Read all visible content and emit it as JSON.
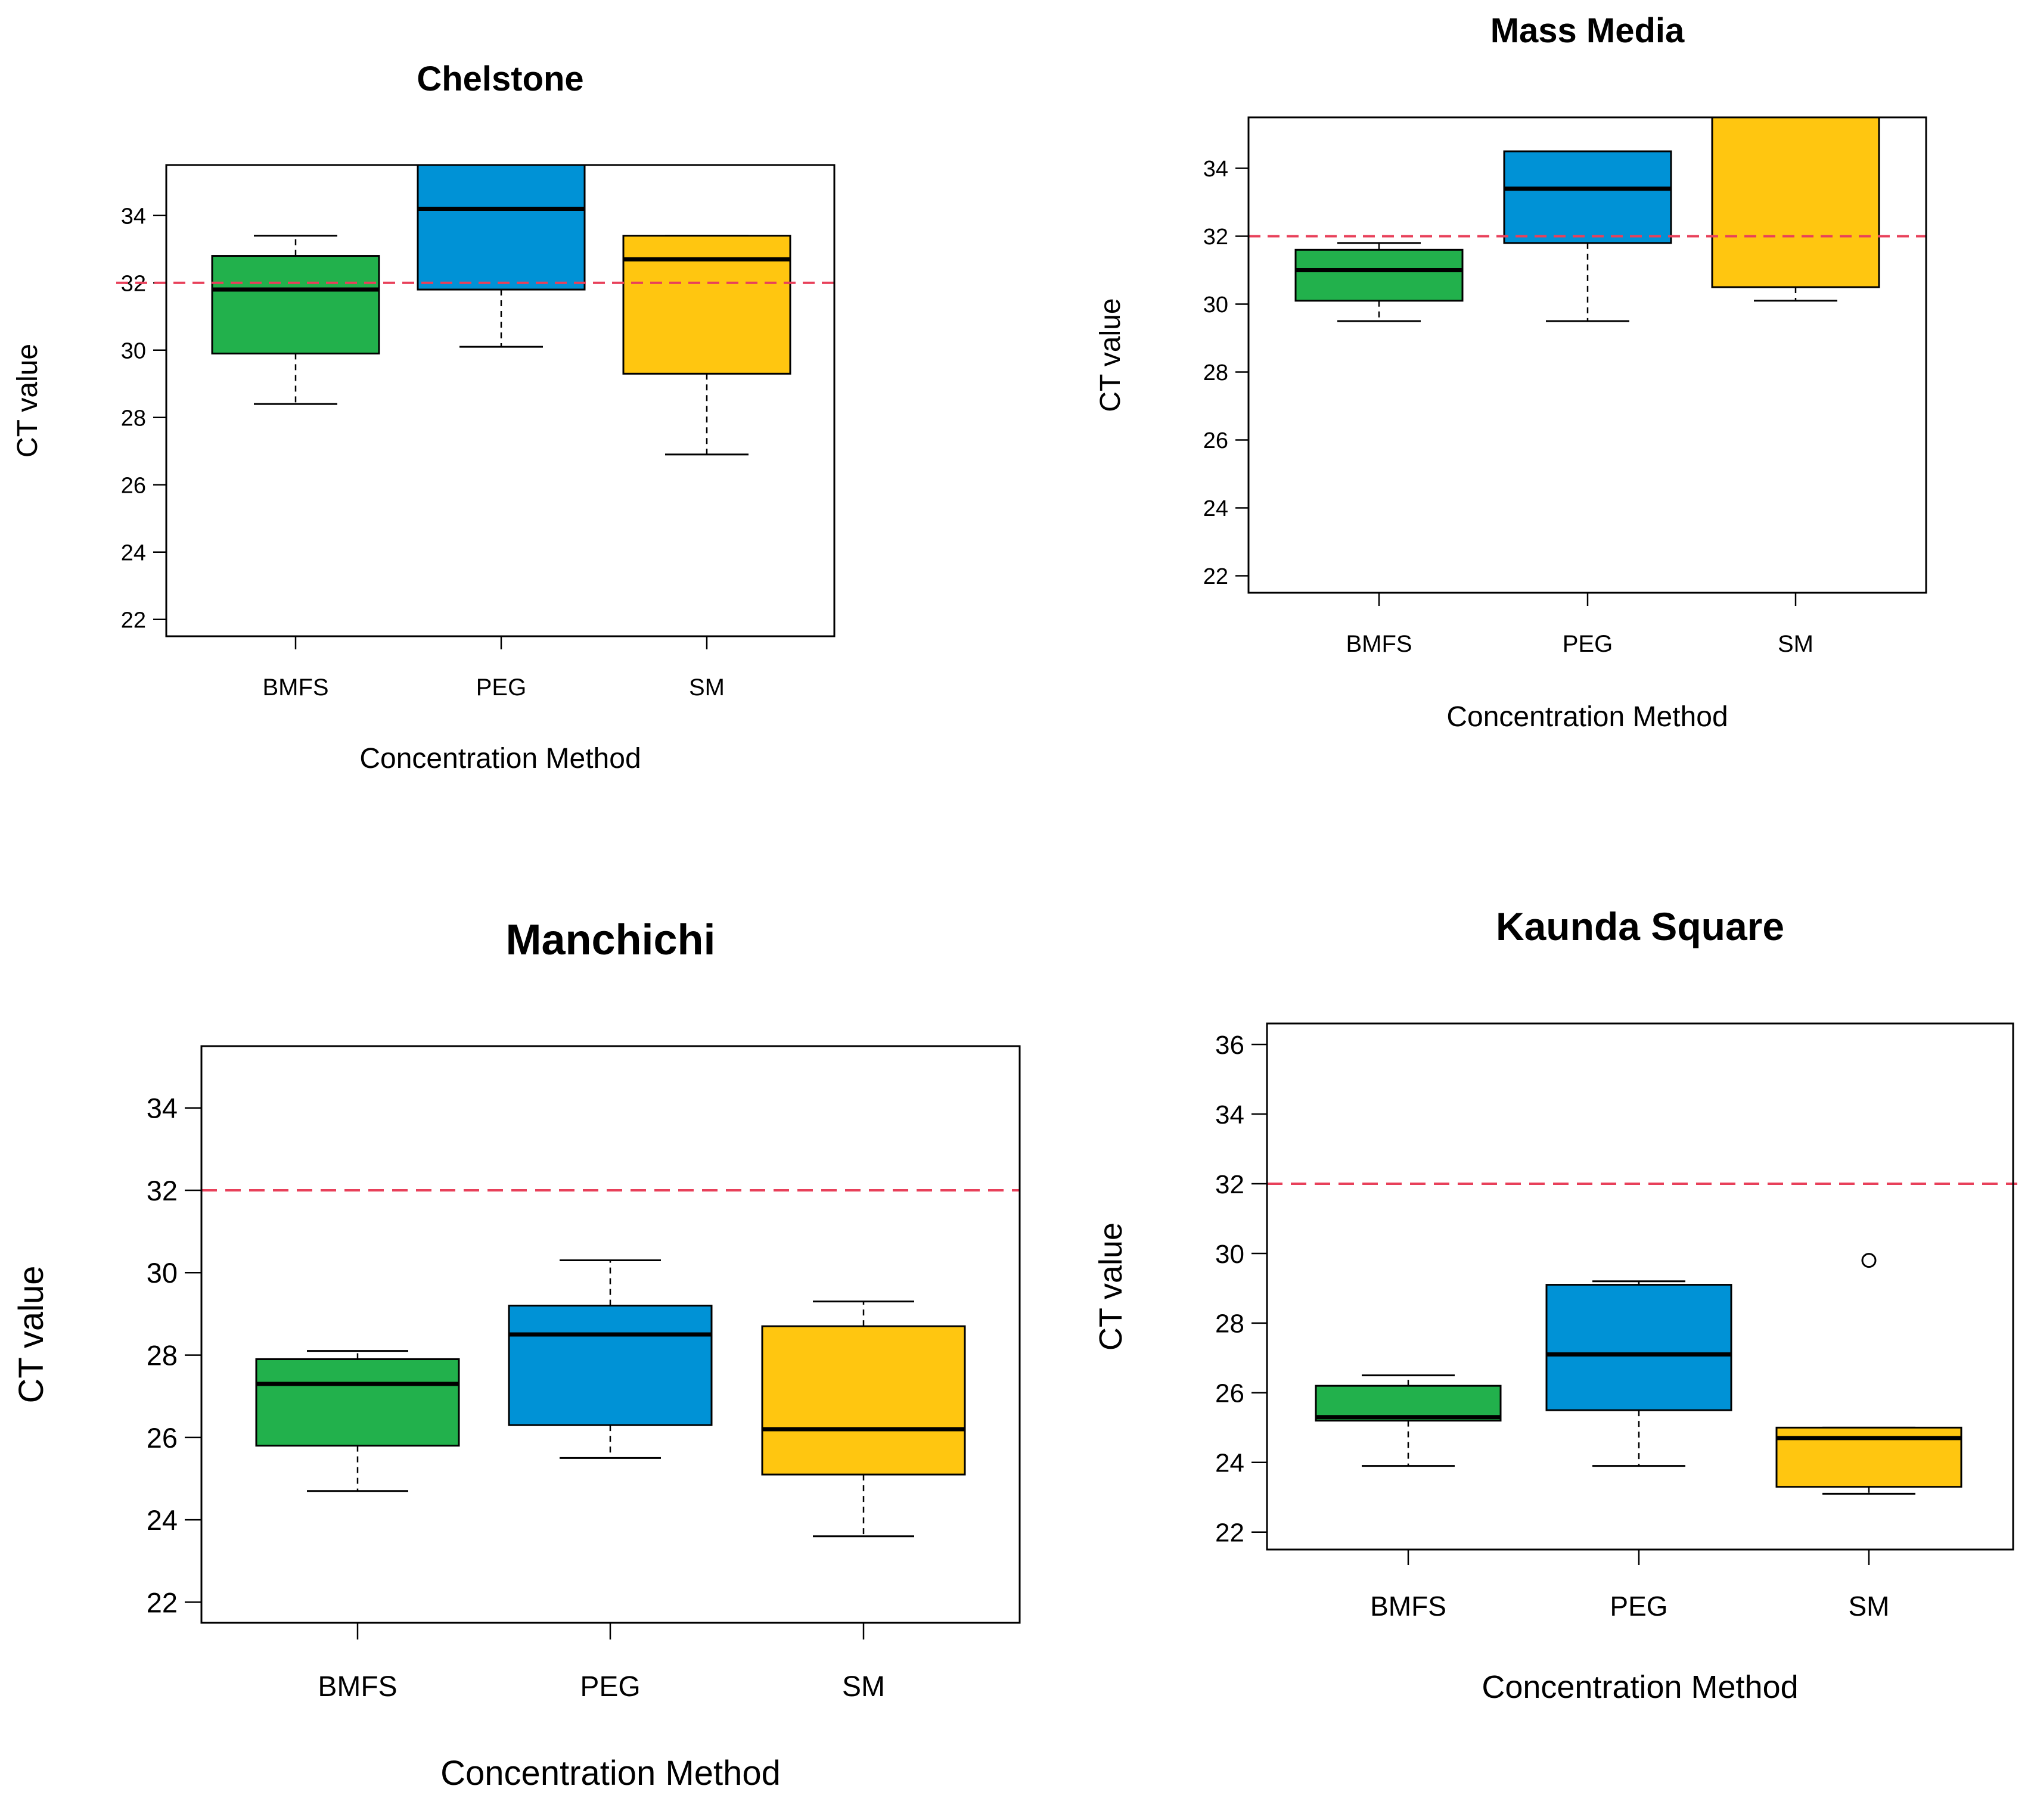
{
  "chart_data": [
    {
      "type": "box",
      "title": "Chelstone",
      "xlabel": "Concentration Method",
      "ylabel": "CT value",
      "ylim": [
        21.5,
        35.5
      ],
      "yticks": [
        22,
        24,
        26,
        28,
        30,
        32,
        34
      ],
      "categories": [
        "BMFS",
        "PEG",
        "SM"
      ],
      "colors": [
        "#22b14c",
        "#0092d6",
        "#ffc610"
      ],
      "threshold": 32,
      "threshold_color": "#e8405a",
      "boxes": [
        {
          "category": "BMFS",
          "min": 28.4,
          "q1": 29.9,
          "median": 31.8,
          "q3": 32.8,
          "max": 33.4
        },
        {
          "category": "PEG",
          "min": 30.1,
          "q1": 31.8,
          "median": 34.2,
          "q3": 36.0,
          "max": 36.0
        },
        {
          "category": "SM",
          "min": 26.9,
          "q1": 29.3,
          "median": 32.7,
          "q3": 33.4,
          "max": 33.4
        }
      ],
      "outliers": []
    },
    {
      "type": "box",
      "title": "Mass Media",
      "xlabel": "Concentration Method",
      "ylabel": "CT value",
      "ylim": [
        21.5,
        35.5
      ],
      "yticks": [
        22,
        24,
        26,
        28,
        30,
        32,
        34
      ],
      "categories": [
        "BMFS",
        "PEG",
        "SM"
      ],
      "colors": [
        "#22b14c",
        "#0092d6",
        "#ffc610"
      ],
      "threshold": 32,
      "threshold_color": "#e8405a",
      "boxes": [
        {
          "category": "BMFS",
          "min": 29.5,
          "q1": 30.1,
          "median": 31.0,
          "q3": 31.6,
          "max": 31.8
        },
        {
          "category": "PEG",
          "min": 29.5,
          "q1": 31.8,
          "median": 33.4,
          "q3": 34.5,
          "max": 34.5
        },
        {
          "category": "SM",
          "min": 30.1,
          "q1": 30.5,
          "median": 36.0,
          "q3": 36.0,
          "max": 36.0
        }
      ],
      "outliers": []
    },
    {
      "type": "box",
      "title": "Manchichi",
      "xlabel": "Concentration Method",
      "ylabel": "CT value",
      "ylim": [
        21.5,
        35.5
      ],
      "yticks": [
        22,
        24,
        26,
        28,
        30,
        32,
        34
      ],
      "categories": [
        "BMFS",
        "PEG",
        "SM"
      ],
      "colors": [
        "#22b14c",
        "#0092d6",
        "#ffc610"
      ],
      "threshold": 32,
      "threshold_color": "#e8405a",
      "boxes": [
        {
          "category": "BMFS",
          "min": 24.7,
          "q1": 25.8,
          "median": 27.3,
          "q3": 27.9,
          "max": 28.1
        },
        {
          "category": "PEG",
          "min": 25.5,
          "q1": 26.3,
          "median": 28.5,
          "q3": 29.2,
          "max": 30.3
        },
        {
          "category": "SM",
          "min": 23.6,
          "q1": 25.1,
          "median": 26.2,
          "q3": 28.7,
          "max": 29.3
        }
      ],
      "outliers": []
    },
    {
      "type": "box",
      "title": "Kaunda Square",
      "xlabel": "Concentration Method",
      "ylabel": "CT value",
      "ylim": [
        21.5,
        36.6
      ],
      "yticks": [
        22,
        24,
        26,
        28,
        30,
        32,
        34,
        36
      ],
      "categories": [
        "BMFS",
        "PEG",
        "SM"
      ],
      "colors": [
        "#22b14c",
        "#0092d6",
        "#ffc610"
      ],
      "threshold": 32,
      "threshold_color": "#e8405a",
      "boxes": [
        {
          "category": "BMFS",
          "min": 23.9,
          "q1": 25.2,
          "median": 25.3,
          "q3": 26.2,
          "max": 26.5
        },
        {
          "category": "PEG",
          "min": 23.9,
          "q1": 25.5,
          "median": 27.1,
          "q3": 29.1,
          "max": 29.2
        },
        {
          "category": "SM",
          "min": 23.1,
          "q1": 23.3,
          "median": 24.7,
          "q3": 25.0,
          "max": 25.0
        }
      ],
      "outliers": [
        {
          "category": "SM",
          "value": 29.8
        }
      ]
    }
  ]
}
